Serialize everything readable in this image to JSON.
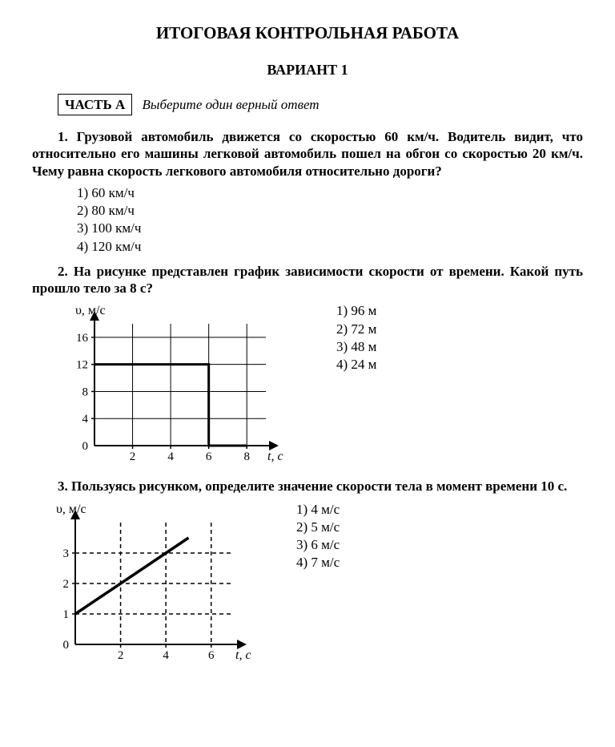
{
  "title": "ИТОГОВАЯ КОНТРОЛЬНАЯ РАБОТА",
  "variant": "ВАРИАНТ 1",
  "part_label": "ЧАСТЬ А",
  "instruction": "Выберите один верный ответ",
  "q1": {
    "text": "1. Грузовой автомобиль движется со скоростью 60 км/ч. Водитель видит, что относительно его машины легковой автомобиль пошел на обгон со скоростью 20 км/ч. Чему равна скорость легкового автомобиля относительно дороги?",
    "opts": [
      "1) 60 км/ч",
      "2) 80 км/ч",
      "3) 100 км/ч",
      "4) 120 км/ч"
    ]
  },
  "q2": {
    "text": "2. На рисунке представлен график зависимости скорости от времени. Какой путь прошло тело за 8 с?",
    "opts": [
      "1) 96 м",
      "2) 72 м",
      "3) 48 м",
      "4) 24 м"
    ],
    "chart": {
      "type": "step-line",
      "ylabel": "υ, м/с",
      "xlabel": "t, с",
      "xlim": [
        0,
        9
      ],
      "ylim": [
        0,
        18
      ],
      "xticks": [
        2,
        4,
        6,
        8
      ],
      "yticks": [
        0,
        4,
        8,
        12,
        16
      ],
      "grid_x": [
        2,
        4,
        6,
        8
      ],
      "grid_y": [
        4,
        8,
        12,
        16
      ],
      "grid_style": "solid",
      "grid_weight": 1,
      "line": [
        [
          0,
          12
        ],
        [
          6,
          12
        ],
        [
          6,
          0
        ],
        [
          8,
          0
        ]
      ],
      "line_weight": 3,
      "line_color": "#000000",
      "grid_color": "#000000",
      "axis_color": "#000000",
      "bg": "#ffffff",
      "tick_fontsize": 15,
      "label_fontsize": 16
    }
  },
  "q3": {
    "text": "3. Пользуясь рисунком, определите значение скорости тела в момент времени 10 с.",
    "opts": [
      "1) 4 м/с",
      "2) 5 м/с",
      "3) 6 м/с",
      "4) 7 м/с"
    ],
    "chart": {
      "type": "line",
      "ylabel": "υ, м/с",
      "xlabel": "t, с",
      "xlim": [
        0,
        7
      ],
      "ylim": [
        0,
        4
      ],
      "xticks": [
        2,
        4,
        6
      ],
      "yticks": [
        0,
        1,
        2,
        3
      ],
      "grid_x": [
        2,
        4,
        6
      ],
      "grid_y": [
        1,
        2,
        3
      ],
      "grid_style": "dashed",
      "dash": "5,4",
      "grid_weight": 1.5,
      "line": [
        [
          0,
          1
        ],
        [
          5,
          3.5
        ]
      ],
      "line_weight": 3.5,
      "line_color": "#000000",
      "grid_color": "#000000",
      "axis_color": "#000000",
      "bg": "#ffffff",
      "tick_fontsize": 15,
      "label_fontsize": 16
    }
  }
}
